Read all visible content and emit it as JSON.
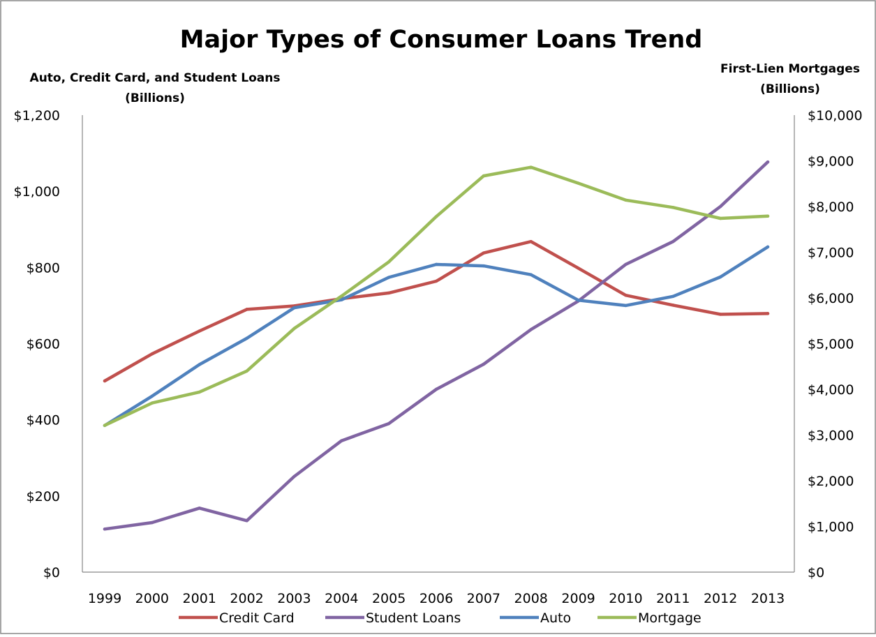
{
  "chart_data": {
    "type": "line",
    "title": "Major Types of Consumer Loans Trend",
    "y_left_label_line1": "Auto, Credit Card, and Student Loans",
    "y_left_label_line2": "(Billions)",
    "y_right_label_line1": "First-Lien Mortgages",
    "y_right_label_line2": "(Billions)",
    "x": [
      "1999",
      "2000",
      "2001",
      "2002",
      "2003",
      "2004",
      "2005",
      "2006",
      "2007",
      "2008",
      "2009",
      "2010",
      "2011",
      "2012",
      "2013"
    ],
    "y_left_ticks": [
      "$0",
      "$200",
      "$400",
      "$600",
      "$800",
      "$1,000",
      "$1,200"
    ],
    "y_right_ticks": [
      "$0",
      "$1,000",
      "$2,000",
      "$3,000",
      "$4,000",
      "$5,000",
      "$6,000",
      "$7,000",
      "$8,000",
      "$9,000",
      "$10,000"
    ],
    "ylim_left": [
      0,
      1200
    ],
    "ylim_right": [
      0,
      10000
    ],
    "grid": false,
    "legend_position": "bottom",
    "series": [
      {
        "name": "Credit Card",
        "axis": "left",
        "color": "#c0504d",
        "values": [
          502,
          573,
          633,
          690,
          699,
          718,
          733,
          764,
          838,
          868,
          798,
          727,
          701,
          677,
          679
        ]
      },
      {
        "name": "Student Loans",
        "axis": "left",
        "color": "#8064a2",
        "values": [
          113,
          130,
          168,
          135,
          251,
          345,
          390,
          480,
          546,
          637,
          712,
          808,
          868,
          960,
          1077
        ]
      },
      {
        "name": "Auto",
        "axis": "left",
        "color": "#4f81bd",
        "values": [
          385,
          462,
          545,
          614,
          694,
          715,
          774,
          808,
          804,
          781,
          714,
          700,
          724,
          775,
          854
        ]
      },
      {
        "name": "Mortgage",
        "axis": "right",
        "color": "#9bbb59",
        "values": [
          3210,
          3700,
          3940,
          4400,
          5330,
          6040,
          6790,
          7780,
          8670,
          8860,
          8510,
          8140,
          7980,
          7740,
          7790
        ]
      }
    ]
  }
}
